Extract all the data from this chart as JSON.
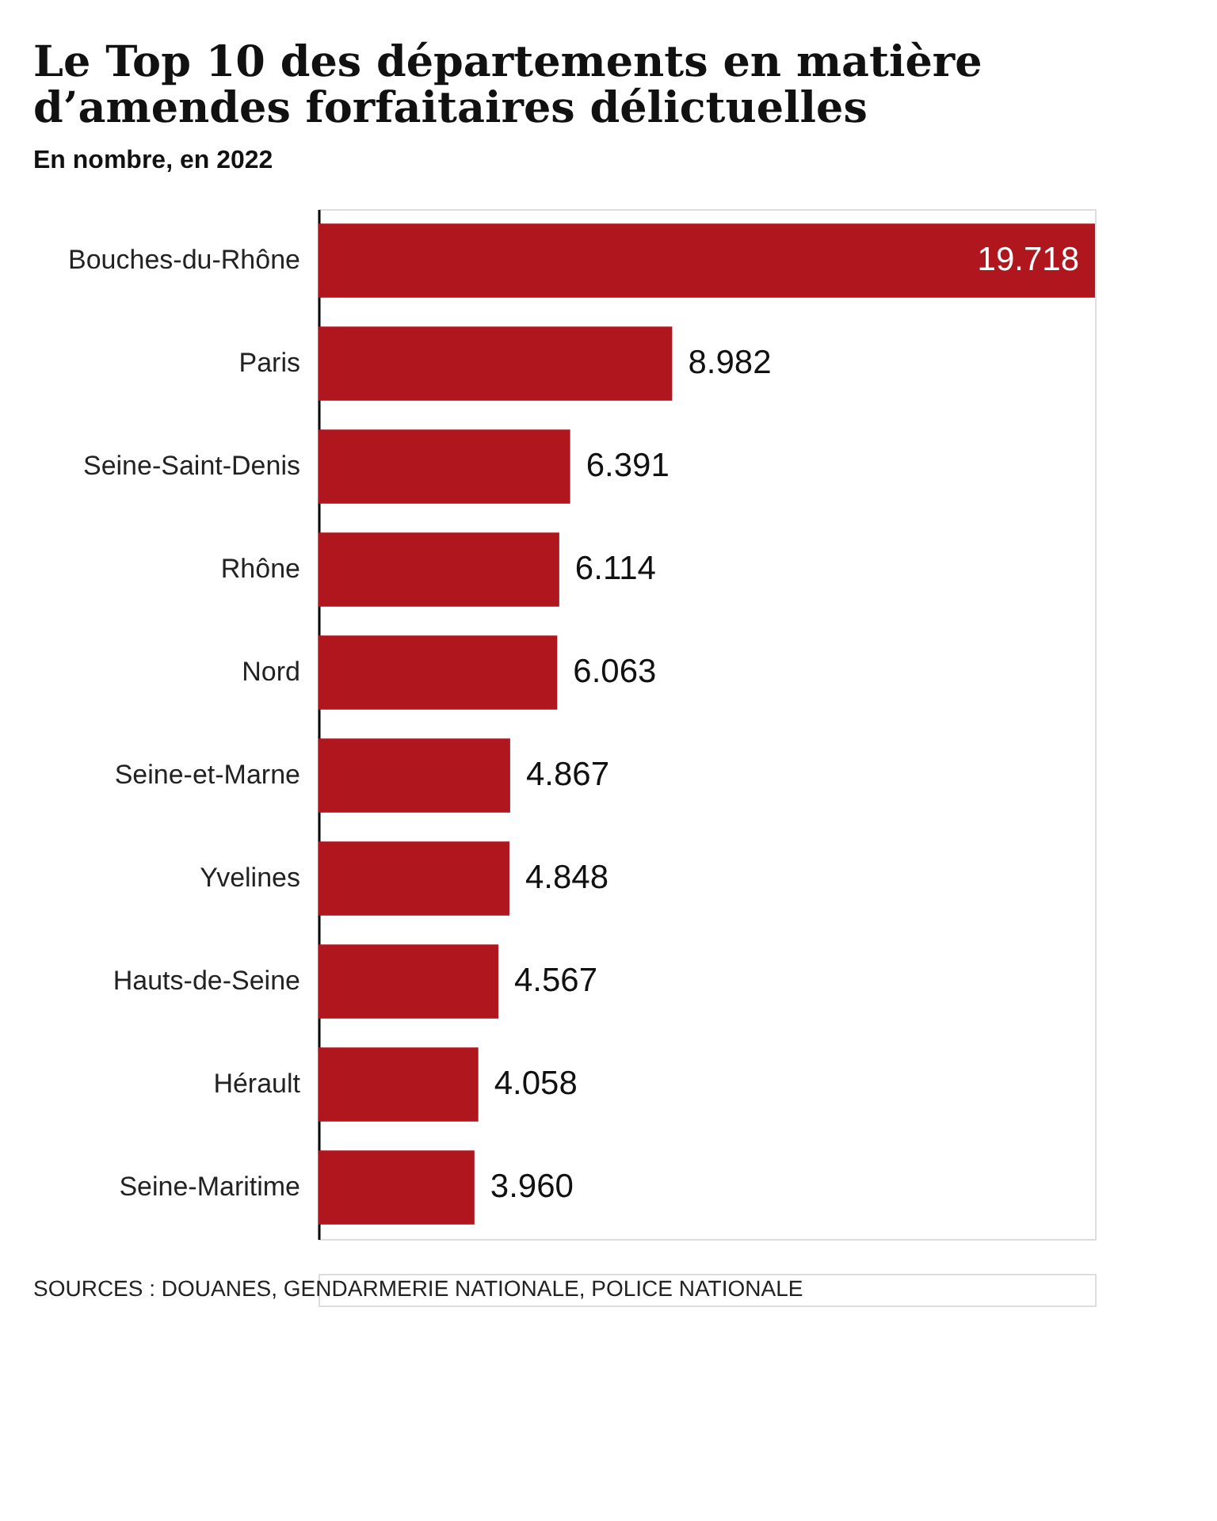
{
  "chart_data": {
    "type": "bar",
    "orientation": "horizontal",
    "title": "Le Top 10 des départements en matière d’amendes forfaitaires délictuelles",
    "subtitle": "En nombre, en 2022",
    "categories": [
      "Bouches-du-Rhône",
      "Paris",
      "Seine-Saint-Denis",
      "Rhône",
      "Nord",
      "Seine-et-Marne",
      "Yvelines",
      "Hauts-de-Seine",
      "Hérault",
      "Seine-Maritime"
    ],
    "values": [
      19718,
      8982,
      6391,
      6114,
      6063,
      4867,
      4848,
      4567,
      4058,
      3960
    ],
    "value_labels": [
      "19.718",
      "8.982",
      "6.391",
      "6.114",
      "6.063",
      "4.867",
      "4.848",
      "4.567",
      "4.058",
      "3.960"
    ],
    "color": "#b0161e",
    "annotations": [
      "SOURCES : DOUANES, GENDARMERIE NATIONALE, POLICE NATIONALE"
    ]
  }
}
